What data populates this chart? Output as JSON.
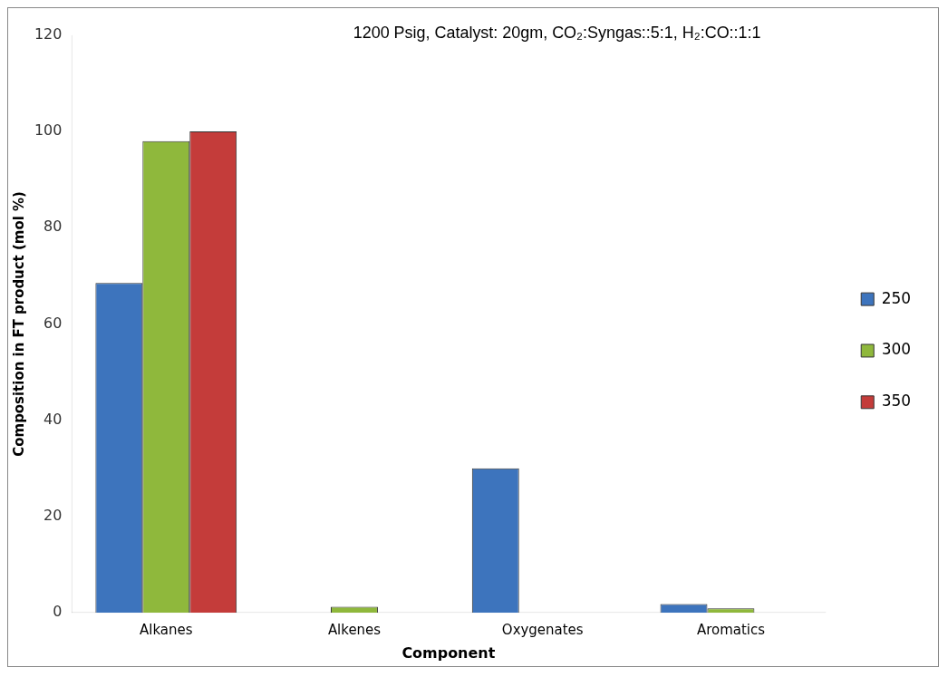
{
  "chart_data": {
    "type": "bar",
    "xlabel": "Component",
    "ylabel": "Composition in FT product (mol %)",
    "annotations": [
      "1200 Psig, Catalyst: 20gm, CO₂:Syngas::5:1, H₂:CO::1:1"
    ],
    "categories": [
      "Alkanes",
      "Alkenes",
      "Oxygenates",
      "Aromatics"
    ],
    "series": [
      {
        "name": "250",
        "color": "#3d74bd",
        "values": [
          68.5,
          0,
          30,
          1.8
        ]
      },
      {
        "name": "300",
        "color": "#8fb83c",
        "values": [
          98,
          1.2,
          0,
          0.9
        ]
      },
      {
        "name": "350",
        "color": "#c43c3a",
        "values": [
          100,
          0,
          0,
          0
        ]
      }
    ],
    "ylim": [
      0,
      120
    ],
    "yticks": [
      0,
      20,
      40,
      60,
      80,
      100,
      120
    ],
    "grid": false,
    "legend": "right"
  }
}
